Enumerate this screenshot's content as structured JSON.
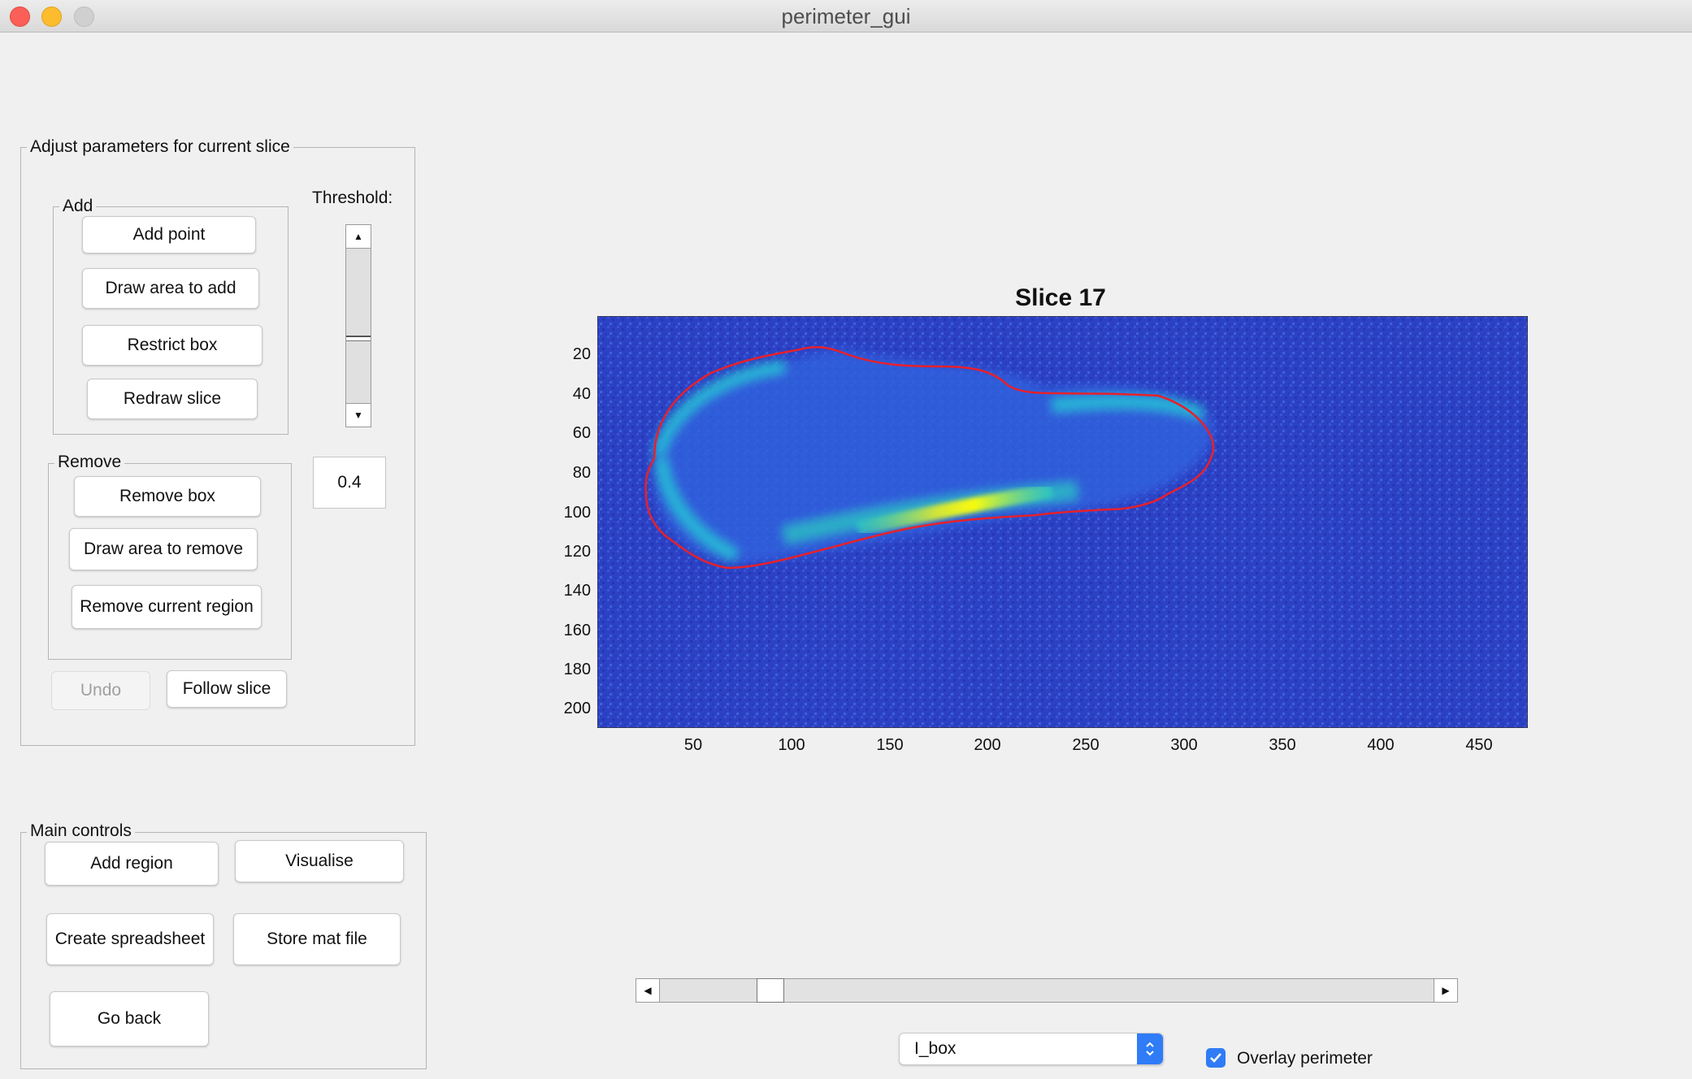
{
  "window": {
    "title": "perimeter_gui"
  },
  "adjust_panel": {
    "title": "Adjust parameters for current slice",
    "add_group": {
      "title": "Add",
      "buttons": [
        "Add point",
        "Draw area to add",
        "Restrict box",
        "Redraw slice"
      ]
    },
    "remove_group": {
      "title": "Remove",
      "buttons": [
        "Remove box",
        "Draw area to remove",
        "Remove current region"
      ]
    },
    "threshold_label": "Threshold:",
    "threshold_value": "0.4",
    "undo_label": "Undo",
    "follow_label": "Follow slice"
  },
  "main_panel": {
    "title": "Main controls",
    "buttons": [
      "Add region",
      "Visualise",
      "Create spreadsheet",
      "Store mat file",
      "Go back"
    ]
  },
  "plot": {
    "title": "Slice 17",
    "y_ticks": [
      "20",
      "40",
      "60",
      "80",
      "100",
      "120",
      "140",
      "160",
      "180",
      "200"
    ],
    "x_ticks": [
      "50",
      "100",
      "150",
      "200",
      "250",
      "300",
      "350",
      "400",
      "450"
    ],
    "colormap": [
      "#2b3fc8",
      "#1f8ee8",
      "#2bd0c0",
      "#d0e33a",
      "#f9fb0e"
    ],
    "perimeter_color": "#e8202a"
  },
  "slider": {
    "position_fraction": 0.13
  },
  "dropdown": {
    "selected": "I_box"
  },
  "overlay": {
    "label": "Overlay perimeter",
    "checked": true
  },
  "icons": {
    "up": "arrow-up-icon",
    "down": "arrow-down-icon",
    "left": "arrow-left-icon",
    "right": "arrow-right-icon",
    "chevron": "chevron-updown-icon",
    "check": "check-icon"
  }
}
